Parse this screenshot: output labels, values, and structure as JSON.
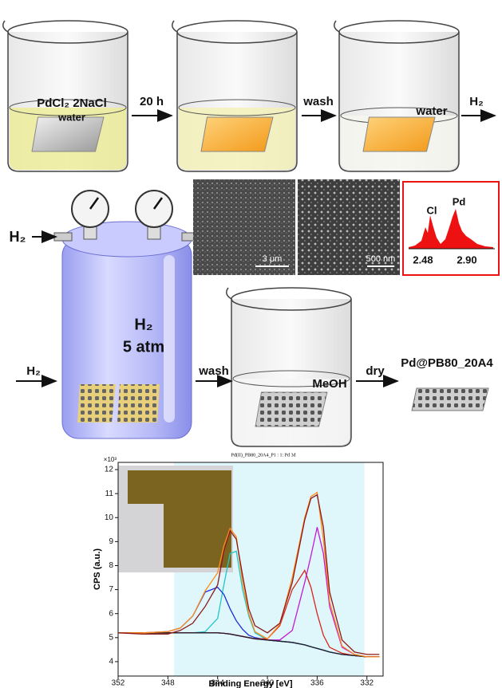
{
  "labels": {
    "step1_salt": "PdCl₂ 2NaCl",
    "step1_solvent": "water",
    "arrow1": "20 h",
    "arrow2": "wash",
    "step3_solvent": "water",
    "arrow3": "H₂",
    "reactor_inlet": "H₂",
    "sem_scale_1": "3 μm",
    "sem_scale_2": "500 nm",
    "edx_cl": "Cl",
    "edx_pd": "Pd",
    "edx_tick_1": "2.48",
    "edx_tick_2": "2.90",
    "reactor_gas": "H₂",
    "reactor_pressure": "5 atm",
    "arrow4": "H₂",
    "arrow5": "wash",
    "step5_solvent": "MeOH",
    "arrow6": "dry",
    "product": "Pd@PB80_20A4"
  },
  "chart_data": {
    "type": "line",
    "title": "Pd(II)_PB80_20A4_P1 : 1: Pd 3d",
    "x_label": "Binding Energy [eV]",
    "y_label": "CPS (a.u.)",
    "y_multiplier": "×10³",
    "x": [
      352,
      350,
      348,
      347,
      346,
      345,
      344,
      343.5,
      343,
      342.5,
      342,
      341.5,
      341,
      340,
      339,
      338,
      337,
      336.5,
      336,
      335.5,
      335,
      334,
      333,
      332,
      331
    ],
    "series": [
      {
        "color": "#1fc7c7",
        "values": [
          5.2,
          5.2,
          5.2,
          5.2,
          5.2,
          5.25,
          5.8,
          7.2,
          8.5,
          8.6,
          7.0,
          5.9,
          5.2,
          4.9,
          4.85,
          4.8,
          4.7,
          4.62,
          4.55,
          4.48,
          4.4,
          4.3,
          4.25,
          4.2,
          4.2
        ]
      },
      {
        "color": "#1a2fd6",
        "values": [
          5.2,
          5.2,
          5.25,
          5.4,
          5.9,
          6.9,
          7.1,
          6.8,
          6.2,
          5.7,
          5.35,
          5.1,
          5.0,
          4.9,
          4.85,
          4.8,
          4.7,
          4.62,
          4.55,
          4.48,
          4.4,
          4.3,
          4.25,
          4.2,
          4.2
        ]
      },
      {
        "color": "#d6261a",
        "values": [
          5.2,
          5.2,
          5.2,
          5.2,
          5.2,
          5.2,
          5.2,
          5.18,
          5.15,
          5.1,
          5.05,
          5.0,
          4.95,
          4.95,
          5.5,
          7.0,
          7.8,
          7.1,
          6.0,
          5.1,
          4.6,
          4.35,
          4.25,
          4.2,
          4.2
        ]
      },
      {
        "color": "#c41ad6",
        "values": [
          5.2,
          5.2,
          5.2,
          5.2,
          5.2,
          5.2,
          5.2,
          5.18,
          5.15,
          5.1,
          5.05,
          5.0,
          4.95,
          4.9,
          4.9,
          5.3,
          7.3,
          8.4,
          9.6,
          8.5,
          6.3,
          4.6,
          4.3,
          4.2,
          4.2
        ]
      },
      {
        "color": "#222222",
        "values": [
          5.2,
          5.2,
          5.2,
          5.2,
          5.2,
          5.2,
          5.2,
          5.18,
          5.15,
          5.1,
          5.05,
          5.0,
          4.95,
          4.9,
          4.85,
          4.8,
          4.7,
          4.62,
          4.55,
          4.48,
          4.4,
          4.3,
          4.25,
          4.2,
          4.2
        ]
      },
      {
        "color": "#ff8c1a",
        "values": [
          5.2,
          5.2,
          5.25,
          5.4,
          5.9,
          6.95,
          7.7,
          8.82,
          9.55,
          9.2,
          7.3,
          6.0,
          5.25,
          4.95,
          5.55,
          7.5,
          10.0,
          10.88,
          11.05,
          9.1,
          6.5,
          4.65,
          4.3,
          4.2,
          4.2
        ]
      },
      {
        "color": "#8b1a1a",
        "values": [
          5.2,
          5.15,
          5.15,
          5.3,
          5.6,
          6.3,
          7.2,
          8.6,
          9.45,
          9.1,
          7.6,
          6.2,
          5.5,
          5.2,
          5.6,
          7.3,
          9.9,
          10.8,
          10.95,
          9.6,
          6.9,
          4.9,
          4.4,
          4.3,
          4.3
        ]
      }
    ],
    "region": [
      347.5,
      332.2
    ],
    "xlim": [
      352,
      330.7
    ],
    "xticks": [
      352,
      348,
      344,
      340,
      336,
      332
    ],
    "ylim": [
      3.4,
      12.3
    ],
    "yticks": [
      4,
      5,
      6,
      7,
      8,
      9,
      10,
      11,
      12
    ]
  }
}
